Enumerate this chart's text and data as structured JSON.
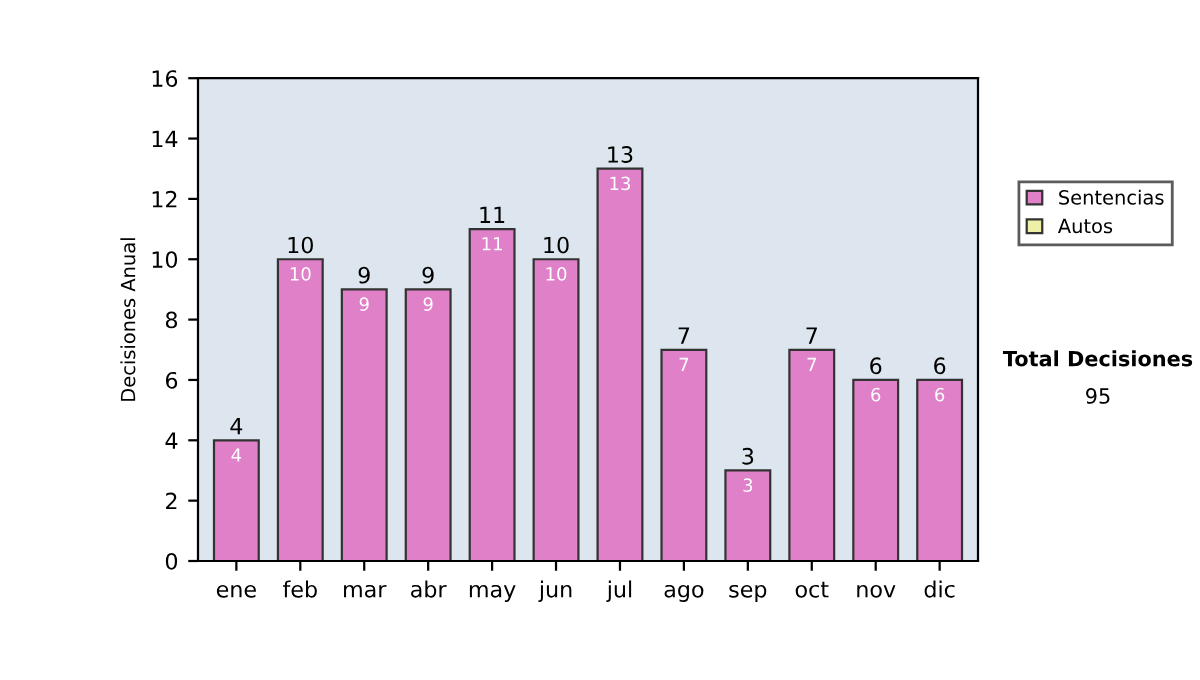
{
  "chart_data": {
    "type": "bar",
    "stacked": true,
    "ylabel": "Decisiones Anual",
    "categories": [
      "ene",
      "feb",
      "mar",
      "abr",
      "may",
      "jun",
      "jul",
      "ago",
      "sep",
      "oct",
      "nov",
      "dic"
    ],
    "series": [
      {
        "name": "Sentencias",
        "color": "#df80c8",
        "values": [
          4,
          10,
          9,
          9,
          11,
          10,
          13,
          7,
          3,
          7,
          6,
          6
        ],
        "value_labels": [
          "4",
          "10",
          "9",
          "9",
          "11",
          "10",
          "13",
          "7",
          "3",
          "7",
          "6",
          "6"
        ]
      },
      {
        "name": "Autos",
        "color": "#eef0a8",
        "values": [
          null,
          null,
          null,
          null,
          null,
          null,
          null,
          null,
          null,
          null,
          null,
          null
        ]
      }
    ],
    "totals": [
      "4",
      "10",
      "9",
      "9",
      "11",
      "10",
      "13",
      "7",
      "3",
      "7",
      "6",
      "6"
    ],
    "ylim": [
      0,
      16
    ],
    "yticks": [
      0,
      2,
      4,
      6,
      8,
      10,
      12,
      14,
      16
    ],
    "grid": false,
    "legend": "right",
    "annotations": [
      "Total Decisiones",
      "95"
    ]
  }
}
